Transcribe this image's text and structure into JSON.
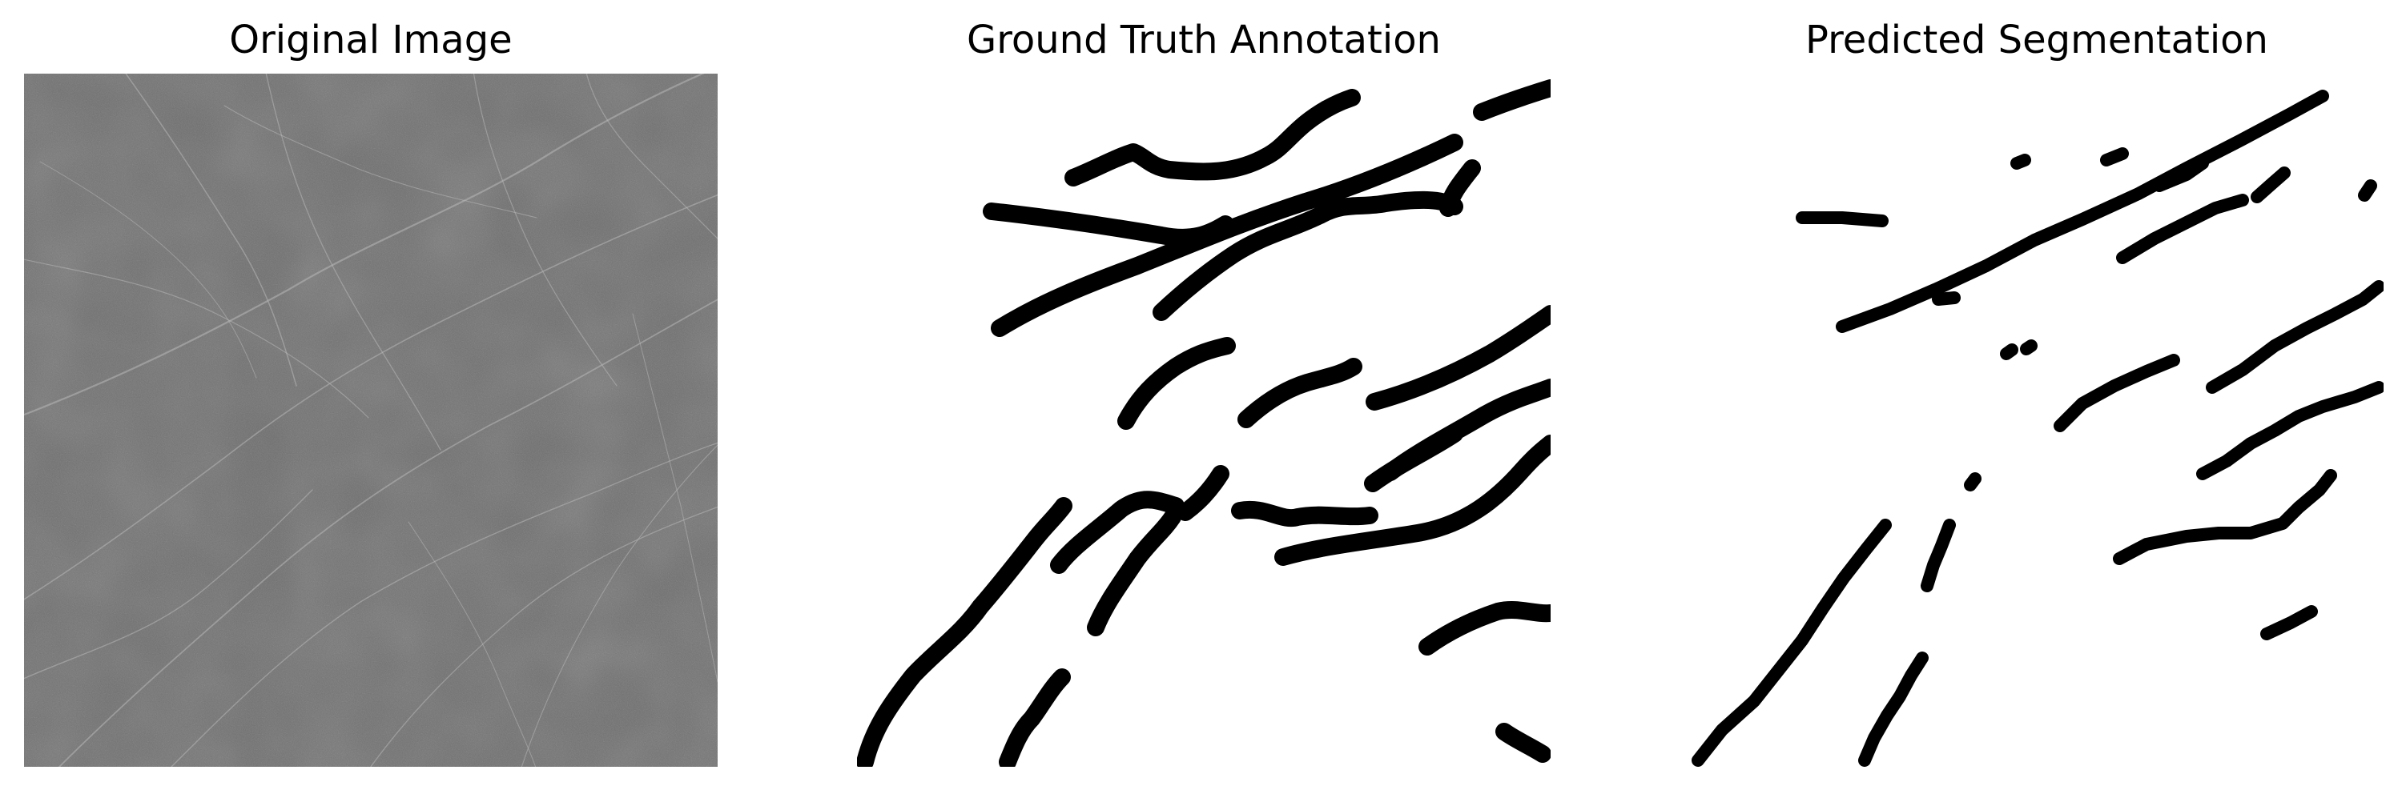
{
  "figure": {
    "panels": [
      {
        "id": "original",
        "title": "Original Image"
      },
      {
        "id": "ground-truth",
        "title": "Ground Truth Annotation"
      },
      {
        "id": "predicted",
        "title": "Predicted Segmentation"
      }
    ]
  },
  "colors": {
    "background": "#ffffff",
    "texture_base": "#6e6e6e",
    "crack_light": "#b4b4b4",
    "mask_foreground": "#000000"
  }
}
